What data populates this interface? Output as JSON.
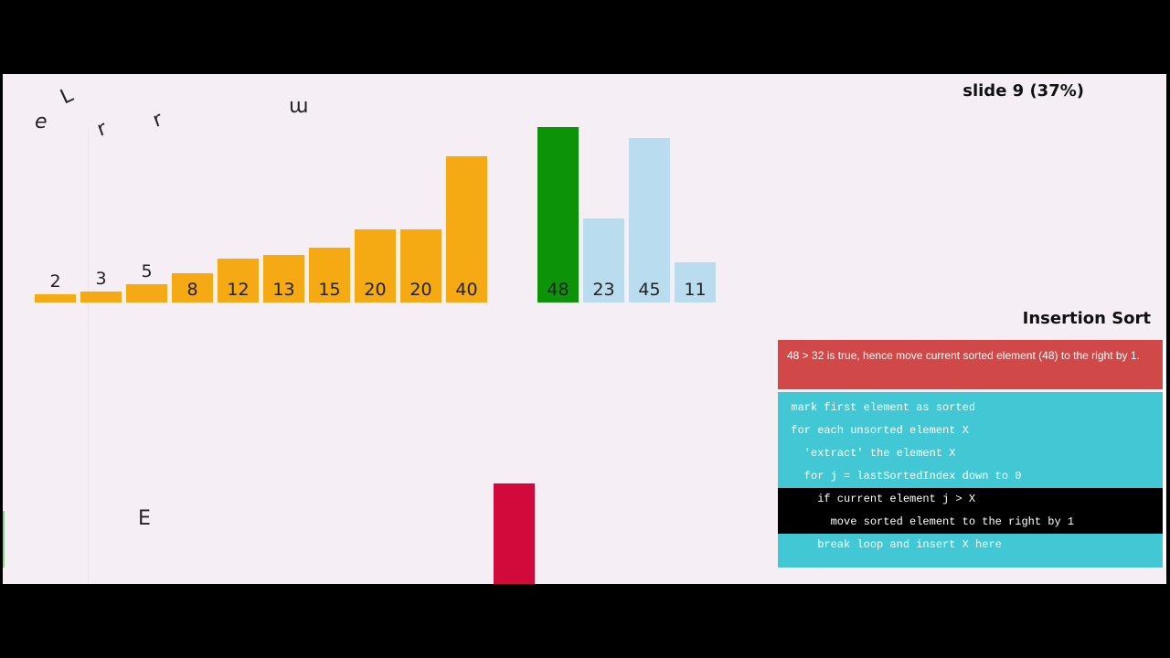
{
  "slide": {
    "text": "slide 9 (37%)"
  },
  "algorithm": {
    "title": "Insertion Sort"
  },
  "status": {
    "message": "48 > 32 is true, hence move current sorted element (48) to the right by 1."
  },
  "handwriting": [
    "e",
    "L",
    "r",
    "r",
    "m",
    "E"
  ],
  "bars": [
    {
      "value": "2",
      "state": "sorted"
    },
    {
      "value": "3",
      "state": "sorted"
    },
    {
      "value": "5",
      "state": "sorted"
    },
    {
      "value": "8",
      "state": "sorted"
    },
    {
      "value": "12",
      "state": "sorted"
    },
    {
      "value": "13",
      "state": "sorted"
    },
    {
      "value": "15",
      "state": "sorted"
    },
    {
      "value": "20",
      "state": "sorted"
    },
    {
      "value": "20",
      "state": "sorted"
    },
    {
      "value": "40",
      "state": "sorted"
    },
    {
      "value": "48",
      "state": "current"
    },
    {
      "value": "23",
      "state": "unsorted"
    },
    {
      "value": "45",
      "state": "unsorted"
    },
    {
      "value": "11",
      "state": "unsorted"
    }
  ],
  "extracted_bar": {
    "state": "extracted"
  },
  "colors": {
    "sorted": "#f5a912",
    "current": "#0c9308",
    "unsorted": "#b9ddee",
    "extracted": "#d20a3c",
    "status_bg": "#d04848",
    "code_bg": "#42c8d5",
    "code_active_bg": "#000000"
  },
  "pseudocode": [
    {
      "text": "mark first element as sorted",
      "active": false
    },
    {
      "text": "for each unsorted element X",
      "active": false
    },
    {
      "text": "  'extract' the element X",
      "active": false
    },
    {
      "text": "  for j = lastSortedIndex down to 0",
      "active": false
    },
    {
      "text": "    if current element j > X",
      "active": true
    },
    {
      "text": "      move sorted element to the right by 1",
      "active": true
    },
    {
      "text": "    break loop and insert X here",
      "active": false
    }
  ]
}
